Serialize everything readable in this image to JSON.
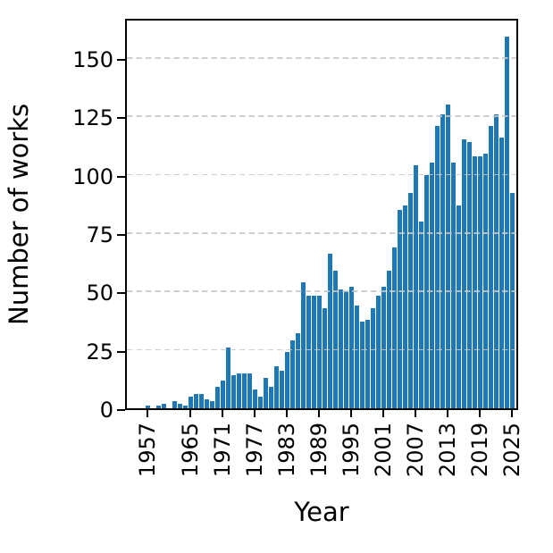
{
  "chart_data": {
    "type": "bar",
    "title": "",
    "xlabel": "Year",
    "ylabel": "Number of works",
    "x_start": 1957,
    "x": [
      1957,
      1958,
      1959,
      1960,
      1961,
      1962,
      1963,
      1964,
      1965,
      1966,
      1967,
      1968,
      1969,
      1970,
      1971,
      1972,
      1973,
      1974,
      1975,
      1976,
      1977,
      1978,
      1979,
      1980,
      1981,
      1982,
      1983,
      1984,
      1985,
      1986,
      1987,
      1988,
      1989,
      1990,
      1991,
      1992,
      1993,
      1994,
      1995,
      1996,
      1997,
      1998,
      1999,
      2000,
      2001,
      2002,
      2003,
      2004,
      2005,
      2006,
      2007,
      2008,
      2009,
      2010,
      2011,
      2012,
      2013,
      2014,
      2015,
      2016,
      2017,
      2018,
      2019,
      2020,
      2021,
      2022,
      2023,
      2024,
      2025
    ],
    "values": [
      1,
      0,
      1,
      2,
      0,
      3,
      2,
      1,
      5,
      6,
      6,
      4,
      3,
      9,
      12,
      26,
      14,
      15,
      15,
      15,
      8,
      5,
      13,
      9,
      18,
      16,
      24,
      29,
      32,
      54,
      48,
      48,
      48,
      43,
      66,
      59,
      51,
      50,
      52,
      44,
      37,
      38,
      43,
      48,
      52,
      59,
      69,
      85,
      87,
      92,
      104,
      80,
      100,
      105,
      121,
      126,
      130,
      105,
      87,
      115,
      114,
      108,
      108,
      109,
      121,
      126,
      116,
      159,
      92
    ],
    "xticks": [
      1957,
      1965,
      1971,
      1977,
      1983,
      1989,
      1995,
      2001,
      2007,
      2013,
      2019,
      2025
    ],
    "yticks": [
      0,
      25,
      50,
      75,
      100,
      125,
      150
    ],
    "ylim": [
      0,
      167.5
    ],
    "grid": "dashed-horizontal",
    "legend": "none",
    "bar_color": "#1f77b4",
    "grid_color": "#c7c7c7",
    "axis_color": "#000000"
  }
}
